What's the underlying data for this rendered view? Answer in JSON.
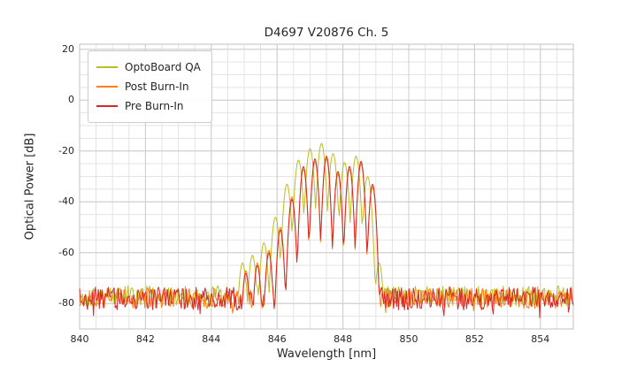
{
  "chart_data": {
    "type": "line",
    "title": "D4697 V20876 Ch. 5",
    "xlabel": "Wavelength [nm]",
    "ylabel": "Optical Power [dB]",
    "xlim": [
      840,
      855
    ],
    "ylim": [
      -90,
      22
    ],
    "x_ticks": [
      840,
      842,
      844,
      846,
      848,
      850,
      852,
      854
    ],
    "y_ticks": [
      20,
      0,
      -20,
      -40,
      -60,
      -80
    ],
    "x_minor_step": 0.5,
    "y_minor_step": 5,
    "grid": true,
    "grid_major_color": "#cccccc",
    "grid_minor_color": "#e4e4e4",
    "axes_border_color": "#c0c0c0",
    "legend_position": "upper-left",
    "series": [
      {
        "name": "OptoBoard QA",
        "color": "#bcbd22",
        "noise_floor_db": -77,
        "noise_amplitude_db": 4,
        "mode_sharpness": 820,
        "modes": [
          [
            844.95,
            -64
          ],
          [
            845.25,
            -61
          ],
          [
            845.6,
            -56
          ],
          [
            845.95,
            -46
          ],
          [
            846.3,
            -33
          ],
          [
            846.65,
            -23.5
          ],
          [
            847.0,
            -19
          ],
          [
            847.35,
            -17
          ],
          [
            847.7,
            -21
          ],
          [
            848.05,
            -24.5
          ],
          [
            848.4,
            -22
          ],
          [
            848.75,
            -30
          ],
          [
            849.1,
            -64
          ]
        ]
      },
      {
        "name": "Post Burn-In",
        "color": "#ff7f0e",
        "noise_floor_db": -78,
        "noise_amplitude_db": 4,
        "mode_sharpness": 1100,
        "modes": [
          [
            845.05,
            -67
          ],
          [
            845.4,
            -64
          ],
          [
            845.75,
            -59
          ],
          [
            846.1,
            -50
          ],
          [
            846.45,
            -38
          ],
          [
            846.8,
            -27
          ],
          [
            847.15,
            -24
          ],
          [
            847.5,
            -23
          ],
          [
            847.85,
            -29
          ],
          [
            848.2,
            -27
          ],
          [
            848.55,
            -25
          ],
          [
            848.9,
            -34
          ]
        ]
      },
      {
        "name": "Pre Burn-In",
        "color": "#d62728",
        "noise_floor_db": -78,
        "noise_amplitude_db": 4.5,
        "mode_sharpness": 1100,
        "modes": [
          [
            845.05,
            -68
          ],
          [
            845.4,
            -65
          ],
          [
            845.75,
            -60
          ],
          [
            846.1,
            -51
          ],
          [
            846.45,
            -39
          ],
          [
            846.8,
            -26
          ],
          [
            847.15,
            -23
          ],
          [
            847.5,
            -22
          ],
          [
            847.85,
            -28
          ],
          [
            848.2,
            -26
          ],
          [
            848.55,
            -24
          ],
          [
            848.9,
            -33
          ]
        ]
      }
    ]
  }
}
